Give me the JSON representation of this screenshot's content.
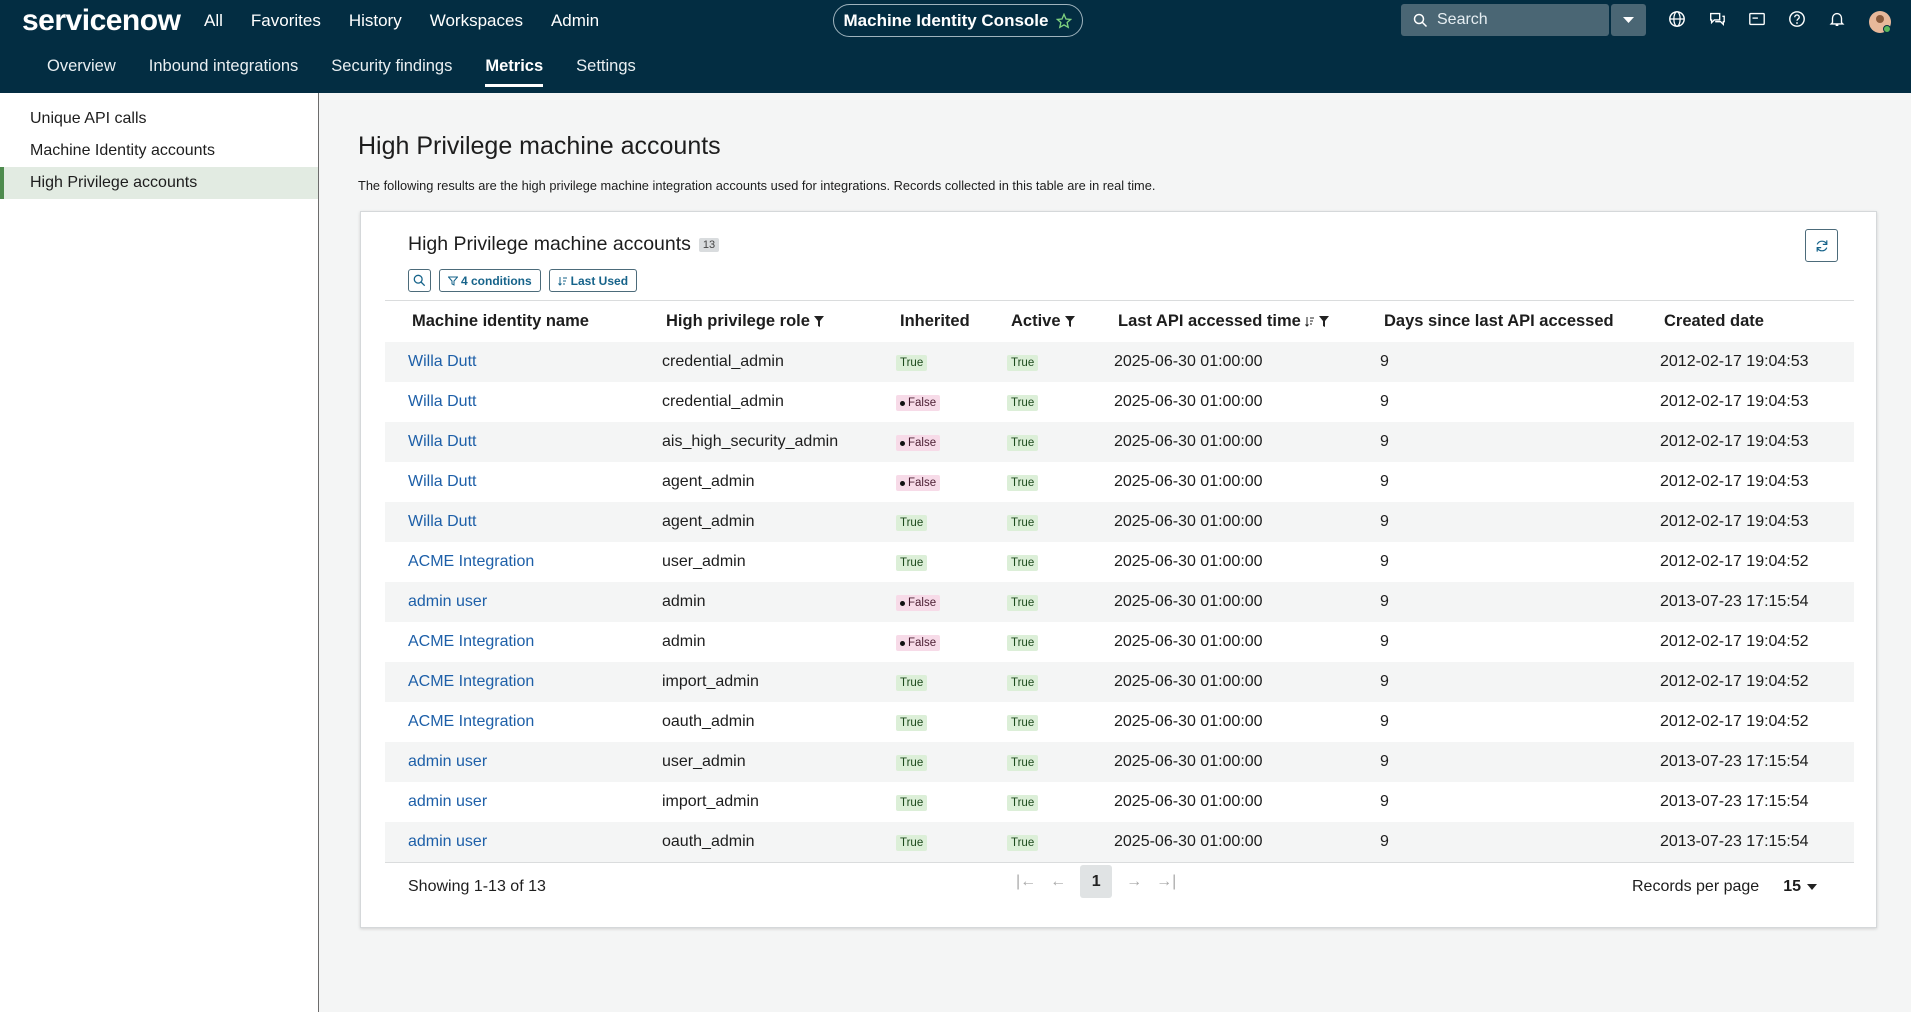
{
  "header": {
    "logo": "servicenow",
    "nav": [
      "All",
      "Favorites",
      "History",
      "Workspaces",
      "Admin"
    ],
    "app_title": "Machine Identity Console",
    "search_placeholder": "Search"
  },
  "tabs": {
    "items": [
      "Overview",
      "Inbound integrations",
      "Security findings",
      "Metrics",
      "Settings"
    ],
    "active": 3
  },
  "sidebar": {
    "items": [
      "Unique API calls",
      "Machine Identity accounts",
      "High Privilege accounts"
    ],
    "active": 2
  },
  "page": {
    "title": "High Privilege machine accounts",
    "description": "The following results are the high privilege machine integration accounts used for integrations. Records collected in this table are in real time."
  },
  "table": {
    "title": "High Privilege machine accounts",
    "count": 13,
    "filter_chip": "4 conditions",
    "sort_chip": "Last Used",
    "columns": [
      "Machine identity name",
      "High privilege role",
      "Inherited",
      "Active",
      "Last API accessed time",
      "Days since last API accessed",
      "Created date"
    ],
    "rows": [
      [
        "Willa Dutt",
        "credential_admin",
        "True",
        "True",
        "2025-06-30 01:00:00",
        9,
        "2012-02-17 19:04:53"
      ],
      [
        "Willa Dutt",
        "credential_admin",
        "False",
        "True",
        "2025-06-30 01:00:00",
        9,
        "2012-02-17 19:04:53"
      ],
      [
        "Willa Dutt",
        "ais_high_security_admin",
        "False",
        "True",
        "2025-06-30 01:00:00",
        9,
        "2012-02-17 19:04:53"
      ],
      [
        "Willa Dutt",
        "agent_admin",
        "False",
        "True",
        "2025-06-30 01:00:00",
        9,
        "2012-02-17 19:04:53"
      ],
      [
        "Willa Dutt",
        "agent_admin",
        "True",
        "True",
        "2025-06-30 01:00:00",
        9,
        "2012-02-17 19:04:53"
      ],
      [
        "ACME Integration",
        "user_admin",
        "True",
        "True",
        "2025-06-30 01:00:00",
        9,
        "2012-02-17 19:04:52"
      ],
      [
        "admin user",
        "admin",
        "False",
        "True",
        "2025-06-30 01:00:00",
        9,
        "2013-07-23 17:15:54"
      ],
      [
        "ACME Integration",
        "admin",
        "False",
        "True",
        "2025-06-30 01:00:00",
        9,
        "2012-02-17 19:04:52"
      ],
      [
        "ACME Integration",
        "import_admin",
        "True",
        "True",
        "2025-06-30 01:00:00",
        9,
        "2012-02-17 19:04:52"
      ],
      [
        "ACME Integration",
        "oauth_admin",
        "True",
        "True",
        "2025-06-30 01:00:00",
        9,
        "2012-02-17 19:04:52"
      ],
      [
        "admin user",
        "user_admin",
        "True",
        "True",
        "2025-06-30 01:00:00",
        9,
        "2013-07-23 17:15:54"
      ],
      [
        "admin user",
        "import_admin",
        "True",
        "True",
        "2025-06-30 01:00:00",
        9,
        "2013-07-23 17:15:54"
      ],
      [
        "admin user",
        "oauth_admin",
        "True",
        "True",
        "2025-06-30 01:00:00",
        9,
        "2013-07-23 17:15:54"
      ]
    ]
  },
  "footer": {
    "showing": "Showing 1-13 of 13",
    "page": 1,
    "records_label": "Records per page",
    "per_page": 15
  }
}
